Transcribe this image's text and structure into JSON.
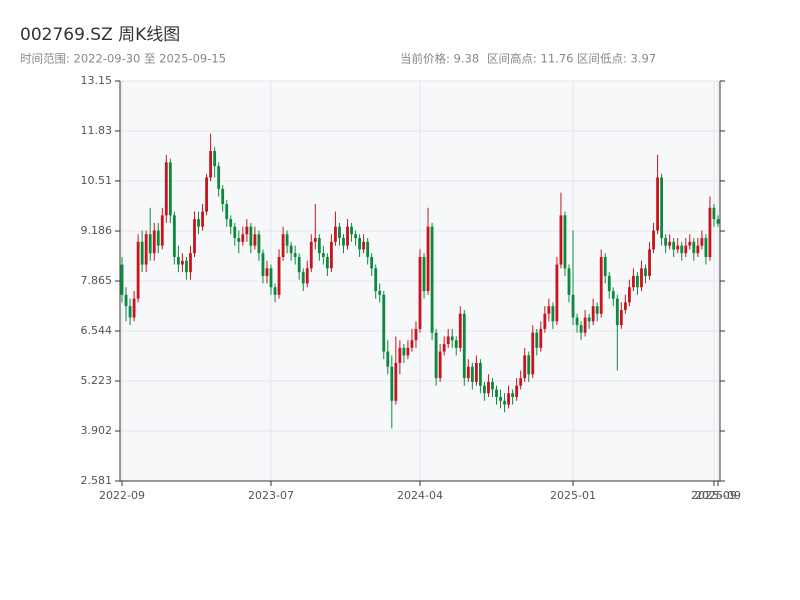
{
  "chart_data": {
    "type": "candlestick",
    "title": "002769.SZ 周K线图",
    "subtitle": "时间范围: 2022-09-30 至 2025-09-15",
    "stats": [
      "当前价格: 9.38",
      "区间高点: 11.76",
      "区间低点: 3.97"
    ],
    "up_color": "#c8141e",
    "down_color": "#0b8a3e",
    "ylim": [
      2.581,
      13.15
    ],
    "yticks": [
      2.581,
      3.902,
      5.223,
      6.544,
      7.865,
      9.186,
      10.51,
      11.83,
      13.15
    ],
    "xticks": [
      {
        "value": 0,
        "label": "2022-09"
      },
      {
        "value": 37,
        "label": "2023-07"
      },
      {
        "value": 74,
        "label": "2024-04"
      },
      {
        "value": 112,
        "label": "2025-01"
      },
      {
        "value": 147,
        "label": "2025-09"
      },
      {
        "value": 148,
        "label": "2025-09"
      }
    ],
    "grid": true,
    "open": [
      8.3,
      7.5,
      7.2,
      6.9,
      7.4,
      8.9,
      8.3,
      9.1,
      8.6,
      9.2,
      8.8,
      9.6,
      11.0,
      9.6,
      8.5,
      8.3,
      8.4,
      8.1,
      8.6,
      9.5,
      9.3,
      9.7,
      10.6,
      11.3,
      10.9,
      10.3,
      9.9,
      9.5,
      9.3,
      9.0,
      8.9,
      9.1,
      9.3,
      8.8,
      9.1,
      8.6,
      8.0,
      8.2,
      7.7,
      7.5,
      8.5,
      9.1,
      8.8,
      8.6,
      8.5,
      8.1,
      7.8,
      8.2,
      8.9,
      9.0,
      8.6,
      8.5,
      8.2,
      8.9,
      9.3,
      9.0,
      8.8,
      9.3,
      9.1,
      9.0,
      8.7,
      8.9,
      8.5,
      8.2,
      7.6,
      7.5,
      6.0,
      5.6,
      4.7,
      5.7,
      6.1,
      5.9,
      6.1,
      6.3,
      6.6,
      8.5,
      7.6,
      9.3,
      6.5,
      5.3,
      6.0,
      6.2,
      6.4,
      6.3,
      6.1,
      7.0,
      5.3,
      5.6,
      5.2,
      5.7,
      5.1,
      4.9,
      5.2,
      5.0,
      4.8,
      4.7,
      4.6,
      4.9,
      4.8,
      5.1,
      5.3,
      5.9,
      5.4,
      6.5,
      6.1,
      6.6,
      7.0,
      7.2,
      6.8,
      8.3,
      9.6,
      8.2,
      7.5,
      6.9,
      6.7,
      6.5,
      6.9,
      6.8,
      7.2,
      7.0,
      8.5,
      8.0,
      7.6,
      7.4,
      6.7,
      7.1,
      7.3,
      7.7,
      8.0,
      7.7,
      8.2,
      8.0,
      8.7,
      9.2,
      10.6,
      9.0,
      8.8,
      8.9,
      8.7,
      8.8,
      8.6,
      8.8,
      8.9,
      8.6,
      8.8,
      9.0,
      8.5,
      9.8,
      9.5
    ],
    "high": [
      8.5,
      7.7,
      7.4,
      7.6,
      9.1,
      9.2,
      9.2,
      9.8,
      9.4,
      9.4,
      9.8,
      11.2,
      11.1,
      9.7,
      8.8,
      8.6,
      8.5,
      8.8,
      9.7,
      9.7,
      9.9,
      10.7,
      11.76,
      11.4,
      11.0,
      10.4,
      10.0,
      9.6,
      9.4,
      9.2,
      9.3,
      9.5,
      9.4,
      9.3,
      9.2,
      8.7,
      8.4,
      8.3,
      7.8,
      8.7,
      9.3,
      9.2,
      8.9,
      8.8,
      8.6,
      8.2,
      8.4,
      9.1,
      9.9,
      9.1,
      8.8,
      8.6,
      9.1,
      9.7,
      9.4,
      9.1,
      9.5,
      9.4,
      9.2,
      9.1,
      9.1,
      9.0,
      8.6,
      8.3,
      7.8,
      7.6,
      6.3,
      5.9,
      6.4,
      6.3,
      6.2,
      6.3,
      6.6,
      6.8,
      8.7,
      8.6,
      9.8,
      9.4,
      6.6,
      6.2,
      6.4,
      6.6,
      6.6,
      6.4,
      7.2,
      7.1,
      5.8,
      5.7,
      5.9,
      5.8,
      5.2,
      5.4,
      5.3,
      5.1,
      5.0,
      4.9,
      5.1,
      5.0,
      5.3,
      5.5,
      6.1,
      6.0,
      6.7,
      6.6,
      6.8,
      7.2,
      7.4,
      7.3,
      8.5,
      10.2,
      9.7,
      8.3,
      9.2,
      7.0,
      6.8,
      7.1,
      7.0,
      7.4,
      7.3,
      8.7,
      8.6,
      8.1,
      7.7,
      7.5,
      7.3,
      7.5,
      7.9,
      8.2,
      8.1,
      8.4,
      8.3,
      8.9,
      9.4,
      11.2,
      10.7,
      9.1,
      9.1,
      9.0,
      9.0,
      8.9,
      9.0,
      9.1,
      9.0,
      9.0,
      9.2,
      9.1,
      10.1,
      9.9,
      9.6
    ],
    "low": [
      7.3,
      6.8,
      6.7,
      6.8,
      7.3,
      8.1,
      8.1,
      8.4,
      8.4,
      8.6,
      8.7,
      9.4,
      9.4,
      8.3,
      8.1,
      8.1,
      7.9,
      7.9,
      8.5,
      9.1,
      9.2,
      9.6,
      10.5,
      10.6,
      10.1,
      9.7,
      9.3,
      9.1,
      8.8,
      8.6,
      8.8,
      8.9,
      8.6,
      8.7,
      8.4,
      7.8,
      7.8,
      7.5,
      7.3,
      7.4,
      8.4,
      8.6,
      8.4,
      8.3,
      7.9,
      7.6,
      7.7,
      8.1,
      8.7,
      8.4,
      8.3,
      8.0,
      8.1,
      8.8,
      8.8,
      8.6,
      8.7,
      8.9,
      8.8,
      8.5,
      8.6,
      8.3,
      8.0,
      7.4,
      7.3,
      5.8,
      5.4,
      3.97,
      4.6,
      5.4,
      5.7,
      5.8,
      6.0,
      6.1,
      6.5,
      7.4,
      7.5,
      6.3,
      5.1,
      5.2,
      5.9,
      6.1,
      6.1,
      5.9,
      6.0,
      5.1,
      5.2,
      5.0,
      5.1,
      4.9,
      4.7,
      4.8,
      4.8,
      4.6,
      4.5,
      4.4,
      4.5,
      4.6,
      4.7,
      5.0,
      5.2,
      5.2,
      5.3,
      5.9,
      6.0,
      6.5,
      6.8,
      6.6,
      6.7,
      8.2,
      8.0,
      7.3,
      6.7,
      6.5,
      6.3,
      6.4,
      6.6,
      6.7,
      6.8,
      6.9,
      7.8,
      7.4,
      7.2,
      5.5,
      6.6,
      7.0,
      7.2,
      7.6,
      7.5,
      7.6,
      7.8,
      7.9,
      8.6,
      9.1,
      8.8,
      8.6,
      8.7,
      8.5,
      8.6,
      8.4,
      8.5,
      8.7,
      8.4,
      8.5,
      8.7,
      8.3,
      8.4,
      9.3,
      9.3
    ],
    "close": [
      7.5,
      7.2,
      6.9,
      7.4,
      8.9,
      8.3,
      9.1,
      8.6,
      9.2,
      8.8,
      9.6,
      11.0,
      9.6,
      8.5,
      8.3,
      8.4,
      8.1,
      8.6,
      9.5,
      9.3,
      9.7,
      10.6,
      11.3,
      10.9,
      10.3,
      9.9,
      9.5,
      9.3,
      9.0,
      8.9,
      9.1,
      9.3,
      8.8,
      9.1,
      8.6,
      8.0,
      8.2,
      7.7,
      7.5,
      8.5,
      9.1,
      8.8,
      8.6,
      8.5,
      8.1,
      7.8,
      8.2,
      8.9,
      9.0,
      8.6,
      8.5,
      8.2,
      8.9,
      9.3,
      9.0,
      8.8,
      9.3,
      9.1,
      9.0,
      8.7,
      8.9,
      8.5,
      8.2,
      7.6,
      7.5,
      6.0,
      5.6,
      4.7,
      5.7,
      6.1,
      5.9,
      6.1,
      6.3,
      6.6,
      8.5,
      7.6,
      9.3,
      6.5,
      5.3,
      6.0,
      6.2,
      6.4,
      6.3,
      6.1,
      7.0,
      5.3,
      5.6,
      5.2,
      5.7,
      5.1,
      4.9,
      5.2,
      5.0,
      4.8,
      4.7,
      4.6,
      4.9,
      4.8,
      5.1,
      5.3,
      5.9,
      5.4,
      6.5,
      6.1,
      6.6,
      7.0,
      7.2,
      6.8,
      8.3,
      9.6,
      8.2,
      7.5,
      6.9,
      6.7,
      6.5,
      6.9,
      6.8,
      7.2,
      7.0,
      8.5,
      8.0,
      7.6,
      7.4,
      6.7,
      7.1,
      7.3,
      7.7,
      8.0,
      7.7,
      8.2,
      8.0,
      8.7,
      9.2,
      10.6,
      9.0,
      8.8,
      8.9,
      8.7,
      8.8,
      8.6,
      8.8,
      8.9,
      8.6,
      8.8,
      9.0,
      8.5,
      9.8,
      9.5,
      9.38
    ]
  }
}
